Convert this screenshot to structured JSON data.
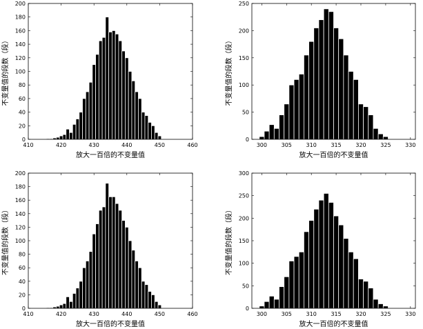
{
  "chart_data": [
    {
      "type": "bar",
      "xlabel": "放大一百倍的不变量值",
      "ylabel": "不变量值的段数（段）",
      "xlim": [
        410,
        460
      ],
      "ylim": [
        0,
        200
      ],
      "xticks": [
        410,
        420,
        430,
        440,
        450,
        460
      ],
      "yticks": [
        0,
        20,
        40,
        60,
        80,
        100,
        120,
        140,
        160,
        180,
        200
      ],
      "x": [
        416,
        417,
        418,
        419,
        420,
        421,
        422,
        423,
        424,
        425,
        426,
        427,
        428,
        429,
        430,
        431,
        432,
        433,
        434,
        435,
        436,
        437,
        438,
        439,
        440,
        441,
        442,
        443,
        444,
        445,
        446,
        447,
        448,
        449,
        450
      ],
      "values": [
        1,
        1,
        2,
        3,
        5,
        7,
        15,
        10,
        22,
        30,
        40,
        60,
        70,
        84,
        110,
        125,
        145,
        150,
        180,
        158,
        160,
        155,
        145,
        130,
        120,
        100,
        86,
        70,
        60,
        40,
        35,
        25,
        20,
        10,
        5
      ]
    },
    {
      "type": "bar",
      "xlabel": "放大一百倍的不变量值",
      "ylabel": "不变量值的段数（段）",
      "xlim": [
        298,
        331
      ],
      "ylim": [
        0,
        250
      ],
      "xticks": [
        300,
        305,
        310,
        315,
        320,
        325,
        330
      ],
      "yticks": [
        0,
        50,
        100,
        150,
        200,
        250
      ],
      "x": [
        300,
        301,
        302,
        303,
        304,
        305,
        306,
        307,
        308,
        309,
        310,
        311,
        312,
        313,
        314,
        315,
        316,
        317,
        318,
        319,
        320,
        321,
        322,
        323,
        324,
        325
      ],
      "values": [
        5,
        15,
        27,
        20,
        45,
        65,
        100,
        110,
        120,
        155,
        180,
        205,
        220,
        240,
        235,
        205,
        185,
        155,
        125,
        110,
        65,
        60,
        45,
        20,
        10,
        5
      ]
    },
    {
      "type": "bar",
      "xlabel": "放大一百倍的不变量值",
      "ylabel": "不变量值的段数（段）",
      "xlim": [
        410,
        460
      ],
      "ylim": [
        0,
        200
      ],
      "xticks": [
        410,
        420,
        430,
        440,
        450,
        460
      ],
      "yticks": [
        0,
        20,
        40,
        60,
        80,
        100,
        120,
        140,
        160,
        180,
        200
      ],
      "x": [
        416,
        417,
        418,
        419,
        420,
        421,
        422,
        423,
        424,
        425,
        426,
        427,
        428,
        429,
        430,
        431,
        432,
        433,
        434,
        435,
        436,
        437,
        438,
        439,
        440,
        441,
        442,
        443,
        444,
        445,
        446,
        447,
        448,
        449,
        450
      ],
      "values": [
        1,
        1,
        2,
        3,
        5,
        7,
        17,
        10,
        22,
        30,
        40,
        60,
        70,
        84,
        110,
        125,
        145,
        150,
        185,
        165,
        165,
        155,
        145,
        130,
        120,
        100,
        86,
        70,
        60,
        40,
        35,
        25,
        20,
        10,
        5
      ]
    },
    {
      "type": "bar",
      "xlabel": "放大一百倍的不变量值",
      "ylabel": "不变量值的段数（段）",
      "xlim": [
        298,
        331
      ],
      "ylim": [
        0,
        300
      ],
      "xticks": [
        300,
        305,
        310,
        315,
        320,
        325,
        330
      ],
      "yticks": [
        0,
        50,
        100,
        150,
        200,
        250,
        300
      ],
      "x": [
        300,
        301,
        302,
        303,
        304,
        305,
        306,
        307,
        308,
        309,
        310,
        311,
        312,
        313,
        314,
        315,
        316,
        317,
        318,
        319,
        320,
        321,
        322,
        323,
        324,
        325
      ],
      "values": [
        5,
        15,
        27,
        20,
        48,
        70,
        105,
        115,
        125,
        170,
        195,
        220,
        240,
        255,
        235,
        205,
        185,
        155,
        125,
        110,
        65,
        60,
        45,
        20,
        10,
        5
      ]
    }
  ]
}
